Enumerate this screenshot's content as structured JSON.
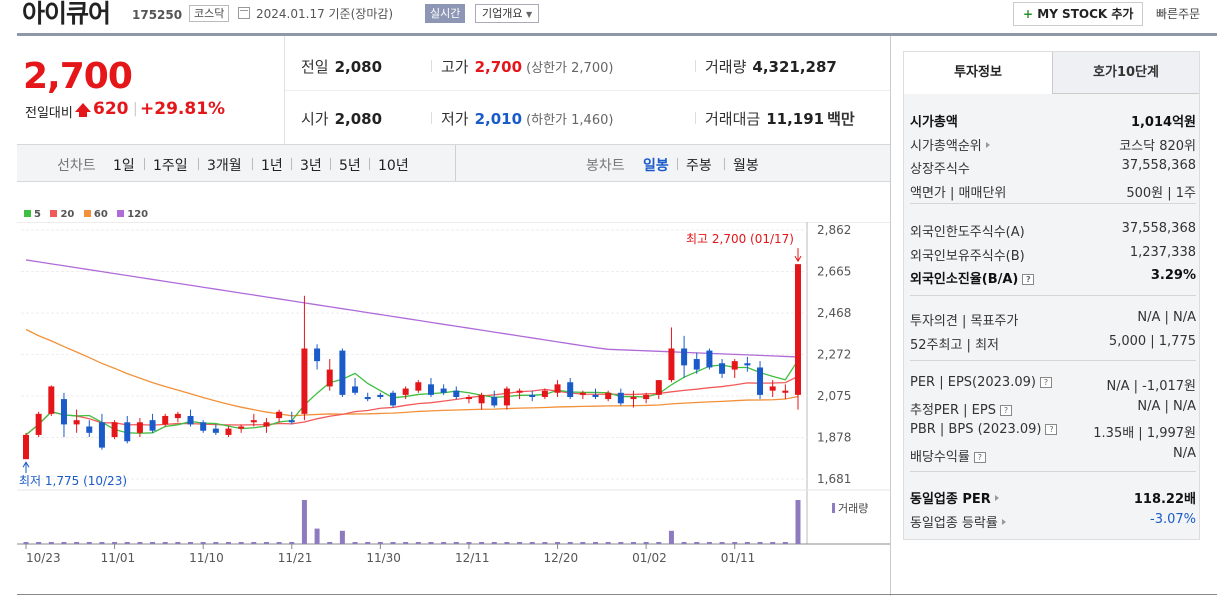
{
  "header": {
    "stock_name": "아이큐어",
    "stock_code": "175250",
    "market": "코스닥",
    "base_date": "2024.01.17 기준(장마감)",
    "realtime_label": "실시간",
    "corp_overview_label": "기업개요",
    "mystock_label": "MY STOCK 추가",
    "mystock_plus": "+",
    "quick_order_label": "빠른주문"
  },
  "price": {
    "current": "2,700",
    "change_label": "전일대비",
    "change": "620",
    "separator": "|",
    "change_pct": "+29.81%"
  },
  "quote": {
    "prev_close": {
      "label": "전일",
      "value": "2,080"
    },
    "high": {
      "label": "고가",
      "value": "2,700",
      "sub": "(상한가 2,700)"
    },
    "volume": {
      "label": "거래량",
      "value": "4,321,287"
    },
    "open": {
      "label": "시가",
      "value": "2,080"
    },
    "low": {
      "label": "저가",
      "value": "2,010",
      "sub": "(하한가 1,460)"
    },
    "amount": {
      "label": "거래대금",
      "value": "11,191",
      "unit": "백만"
    }
  },
  "chart_tabs": {
    "line_label": "선차트",
    "line_periods": [
      "1일",
      "1주일",
      "3개월",
      "1년",
      "3년",
      "5년",
      "10년"
    ],
    "candle_label": "봉차트",
    "candle_periods": [
      "일봉",
      "주봉",
      "월봉"
    ],
    "candle_selected": "일봉"
  },
  "colors": {
    "up": "#e4161a",
    "down": "#1a5bc9",
    "ma5": "#3fbf3f",
    "ma20": "#f25a5a",
    "ma60": "#f2913a",
    "ma120": "#b06bd9",
    "volume": "#8e7bbf"
  },
  "chart_data": {
    "type": "candlestick",
    "legend": [
      "5",
      "20",
      "60",
      "120"
    ],
    "y_ticks": [
      2862,
      2665,
      2468,
      2272,
      2075,
      1878,
      1681
    ],
    "y_tick_labels": [
      "2,862",
      "2,665",
      "2,468",
      "2,272",
      "2,075",
      "1,878",
      "1,681"
    ],
    "ylim": [
      1681,
      2862
    ],
    "x_labels": [
      "10/23",
      "11/01",
      "11/10",
      "11/21",
      "11/30",
      "12/11",
      "12/20",
      "01/02",
      "01/11"
    ],
    "x_label_index": [
      0,
      7,
      14,
      21,
      28,
      35,
      42,
      49,
      56
    ],
    "max_annotation": "최고 2,700 (01/17)",
    "min_annotation": "최저 1,775 (10/23)",
    "volume_label": "거래량",
    "candles": [
      {
        "o": 1775,
        "h": 1900,
        "l": 1775,
        "c": 1890
      },
      {
        "o": 1890,
        "h": 2000,
        "l": 1880,
        "c": 1990
      },
      {
        "o": 1990,
        "h": 2125,
        "l": 1980,
        "c": 2120
      },
      {
        "o": 2060,
        "h": 2090,
        "l": 1880,
        "c": 1940
      },
      {
        "o": 1940,
        "h": 2010,
        "l": 1900,
        "c": 1960
      },
      {
        "o": 1930,
        "h": 1960,
        "l": 1880,
        "c": 1900
      },
      {
        "o": 1950,
        "h": 1990,
        "l": 1820,
        "c": 1830
      },
      {
        "o": 1880,
        "h": 1960,
        "l": 1870,
        "c": 1950
      },
      {
        "o": 1950,
        "h": 1980,
        "l": 1850,
        "c": 1860
      },
      {
        "o": 1900,
        "h": 1970,
        "l": 1880,
        "c": 1950
      },
      {
        "o": 1960,
        "h": 1990,
        "l": 1900,
        "c": 1910
      },
      {
        "o": 1940,
        "h": 1990,
        "l": 1930,
        "c": 1980
      },
      {
        "o": 1970,
        "h": 2000,
        "l": 1950,
        "c": 1990
      },
      {
        "o": 1980,
        "h": 2010,
        "l": 1930,
        "c": 1940
      },
      {
        "o": 1950,
        "h": 1960,
        "l": 1900,
        "c": 1910
      },
      {
        "o": 1920,
        "h": 1940,
        "l": 1890,
        "c": 1900
      },
      {
        "o": 1890,
        "h": 1930,
        "l": 1880,
        "c": 1920
      },
      {
        "o": 1920,
        "h": 1940,
        "l": 1900,
        "c": 1930
      },
      {
        "o": 1950,
        "h": 1990,
        "l": 1930,
        "c": 1960
      },
      {
        "o": 1930,
        "h": 1970,
        "l": 1900,
        "c": 1950
      },
      {
        "o": 1970,
        "h": 2010,
        "l": 1950,
        "c": 2000
      },
      {
        "o": 1960,
        "h": 2000,
        "l": 1940,
        "c": 1950
      },
      {
        "o": 1990,
        "h": 2550,
        "l": 1960,
        "c": 2300
      },
      {
        "o": 2300,
        "h": 2320,
        "l": 2200,
        "c": 2240
      },
      {
        "o": 2120,
        "h": 2250,
        "l": 2100,
        "c": 2200
      },
      {
        "o": 2290,
        "h": 2300,
        "l": 2070,
        "c": 2080
      },
      {
        "o": 2120,
        "h": 2160,
        "l": 2080,
        "c": 2090
      },
      {
        "o": 2070,
        "h": 2090,
        "l": 2050,
        "c": 2060
      },
      {
        "o": 2080,
        "h": 2090,
        "l": 2060,
        "c": 2070
      },
      {
        "o": 2090,
        "h": 2100,
        "l": 2020,
        "c": 2030
      },
      {
        "o": 2080,
        "h": 2120,
        "l": 2060,
        "c": 2110
      },
      {
        "o": 2100,
        "h": 2150,
        "l": 2090,
        "c": 2140
      },
      {
        "o": 2130,
        "h": 2160,
        "l": 2070,
        "c": 2080
      },
      {
        "o": 2110,
        "h": 2130,
        "l": 2080,
        "c": 2090
      },
      {
        "o": 2100,
        "h": 2120,
        "l": 2060,
        "c": 2070
      },
      {
        "o": 2060,
        "h": 2080,
        "l": 2040,
        "c": 2070
      },
      {
        "o": 2040,
        "h": 2090,
        "l": 2010,
        "c": 2080
      },
      {
        "o": 2070,
        "h": 2100,
        "l": 2020,
        "c": 2030
      },
      {
        "o": 2030,
        "h": 2120,
        "l": 2010,
        "c": 2110
      },
      {
        "o": 2090,
        "h": 2110,
        "l": 2060,
        "c": 2100
      },
      {
        "o": 2080,
        "h": 2100,
        "l": 2050,
        "c": 2070
      },
      {
        "o": 2070,
        "h": 2110,
        "l": 2060,
        "c": 2100
      },
      {
        "o": 2090,
        "h": 2150,
        "l": 2070,
        "c": 2130
      },
      {
        "o": 2140,
        "h": 2160,
        "l": 2060,
        "c": 2070
      },
      {
        "o": 2080,
        "h": 2100,
        "l": 2060,
        "c": 2090
      },
      {
        "o": 2080,
        "h": 2110,
        "l": 2060,
        "c": 2070
      },
      {
        "o": 2060,
        "h": 2100,
        "l": 2050,
        "c": 2090
      },
      {
        "o": 2090,
        "h": 2110,
        "l": 2030,
        "c": 2040
      },
      {
        "o": 2060,
        "h": 2100,
        "l": 2020,
        "c": 2070
      },
      {
        "o": 2060,
        "h": 2090,
        "l": 2040,
        "c": 2080
      },
      {
        "o": 2080,
        "h": 2150,
        "l": 2060,
        "c": 2150
      },
      {
        "o": 2150,
        "h": 2400,
        "l": 2140,
        "c": 2300
      },
      {
        "o": 2300,
        "h": 2360,
        "l": 2160,
        "c": 2220
      },
      {
        "o": 2250,
        "h": 2280,
        "l": 2180,
        "c": 2200
      },
      {
        "o": 2290,
        "h": 2300,
        "l": 2200,
        "c": 2210
      },
      {
        "o": 2230,
        "h": 2250,
        "l": 2160,
        "c": 2180
      },
      {
        "o": 2200,
        "h": 2250,
        "l": 2160,
        "c": 2240
      },
      {
        "o": 2230,
        "h": 2260,
        "l": 2190,
        "c": 2220
      },
      {
        "o": 2210,
        "h": 2240,
        "l": 2060,
        "c": 2080
      },
      {
        "o": 2100,
        "h": 2150,
        "l": 2070,
        "c": 2120
      },
      {
        "o": 2090,
        "h": 2130,
        "l": 2060,
        "c": 2100
      },
      {
        "o": 2080,
        "h": 2700,
        "l": 2010,
        "c": 2700
      }
    ],
    "volume_spikes": [
      0,
      0,
      0,
      0,
      0,
      0,
      0,
      0,
      0,
      0,
      0,
      0,
      0,
      0,
      0,
      0,
      0,
      0,
      0,
      0,
      0,
      0,
      1,
      0.35,
      0,
      0.3,
      0,
      0,
      0,
      0,
      0,
      0,
      0,
      0,
      0,
      0,
      0,
      0,
      0,
      0,
      0,
      0,
      0,
      0,
      0,
      0,
      0,
      0,
      0,
      0,
      0,
      0.3,
      0,
      0,
      0,
      0,
      0,
      0,
      0,
      0,
      0,
      1
    ],
    "ma120_start": 2720,
    "ma120_end": 2260,
    "ma60_start": 2390
  },
  "side": {
    "tab_active": "투자정보",
    "tab_other": "호가10단계",
    "rows_g1": [
      {
        "l": "시가총액",
        "r": "1,014억원",
        "bold": true
      },
      {
        "l": "시가총액순위",
        "r": "코스닥 820위",
        "tri": true
      },
      {
        "l": "상장주식수",
        "r": "37,558,368"
      },
      {
        "l": "액면가 | 매매단위",
        "r": "500원 | 1주"
      }
    ],
    "rows_g2": [
      {
        "l": "외국인한도주식수(A)",
        "r": "37,558,368"
      },
      {
        "l": "외국인보유주식수(B)",
        "r": "1,237,338"
      },
      {
        "l": "외국인소진율(B/A)",
        "r": "3.29%",
        "bold": true,
        "q": true
      }
    ],
    "rows_g3": [
      {
        "l": "투자의견 | 목표주가",
        "r": "N/A | N/A"
      },
      {
        "l": "52주최고 | 최저",
        "r": "5,000 | 1,775"
      }
    ],
    "rows_g4": [
      {
        "l": "PER | EPS(2023.09)",
        "r": "N/A | -1,017원",
        "q": true
      },
      {
        "l": "추정PER | EPS",
        "r": "N/A | N/A",
        "q": true
      },
      {
        "l": "PBR | BPS (2023.09)",
        "r": "1.35배 | 1,997원",
        "q": true
      },
      {
        "l": "배당수익률",
        "r": "N/A",
        "q": true
      }
    ],
    "rows_g5": [
      {
        "l": "동일업종 PER",
        "r": "118.22배",
        "bold": true,
        "tri": true
      },
      {
        "l": "동일업종 등락률",
        "r": "-3.07%",
        "tri": true,
        "rblue": true
      }
    ]
  }
}
